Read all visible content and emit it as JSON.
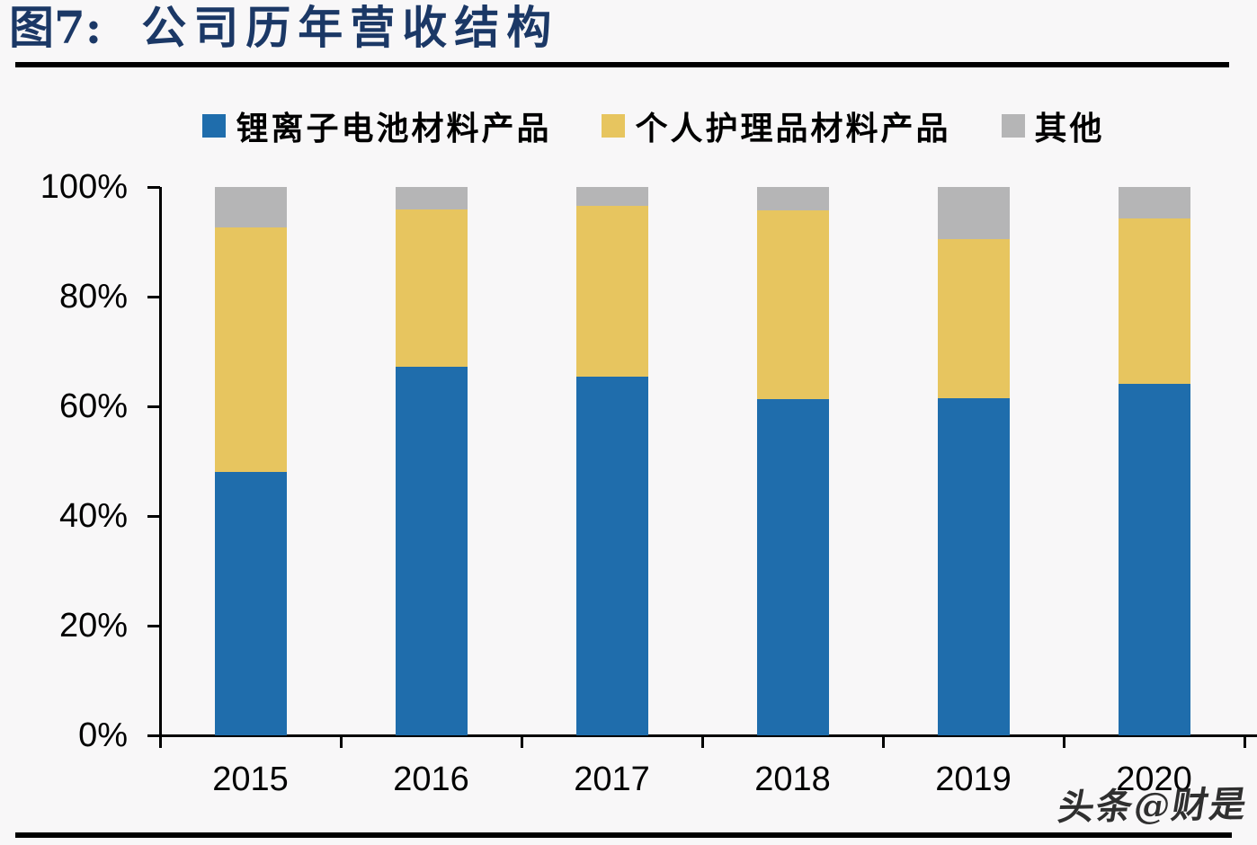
{
  "header": {
    "figure_label": "图7:",
    "title": "公司历年营收结构"
  },
  "page": {
    "watermark": "头条@财是",
    "background_color": "#f8f7f8",
    "title_color": "#1b3866"
  },
  "chart_data": {
    "type": "bar",
    "stacked": true,
    "percent": true,
    "title": "公司历年营收结构",
    "categories": [
      "2015",
      "2016",
      "2017",
      "2018",
      "2019",
      "2020"
    ],
    "series": [
      {
        "name": "锂离子电池材料产品",
        "color": "#1f6dac",
        "values": [
          48.0,
          67.2,
          65.4,
          61.3,
          61.5,
          64.1
        ]
      },
      {
        "name": "个人护理品材料产品",
        "color": "#e7c55f",
        "values": [
          44.6,
          28.7,
          31.2,
          34.4,
          29.0,
          30.2
        ]
      },
      {
        "name": "其他",
        "color": "#b5b5b6",
        "values": [
          7.4,
          4.1,
          3.4,
          4.3,
          9.5,
          5.7
        ]
      }
    ],
    "xlabel": "",
    "ylabel": "",
    "ylim": [
      0,
      100
    ],
    "yticks": [
      {
        "label": "0%",
        "value": 0
      },
      {
        "label": "20%",
        "value": 20
      },
      {
        "label": "40%",
        "value": 40
      },
      {
        "label": "60%",
        "value": 60
      },
      {
        "label": "80%",
        "value": 80
      },
      {
        "label": "100%",
        "value": 100
      }
    ],
    "legend_position": "top",
    "grid": false
  }
}
